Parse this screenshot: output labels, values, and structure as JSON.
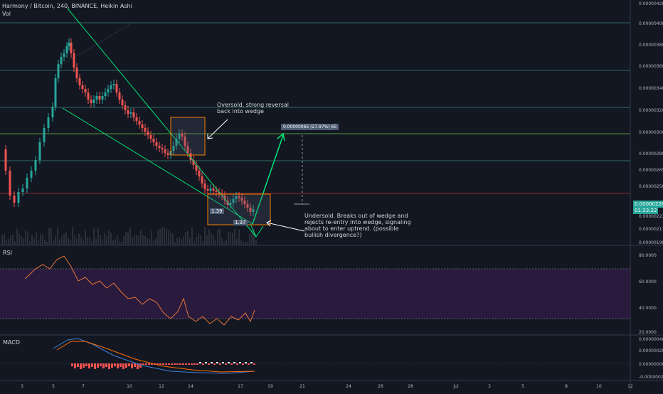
{
  "header": {
    "title": "Harmony / Bitcoin, 240, BINANCE, Heikin Ashi",
    "vol_label": "Vol"
  },
  "price_axis": {
    "labels": [
      "0.00000420",
      "0.00000400",
      "0.00000380",
      "0.00000360",
      "0.00000340",
      "0.00000320",
      "0.00000300",
      "0.00000280",
      "0.00000265",
      "0.00000250",
      "0.00000235",
      "0.00000223",
      "0.00000211",
      "0.00000199"
    ],
    "current_price": "0.00000226",
    "countdown": "01:33:22"
  },
  "rsi_axis": {
    "title": "RSI",
    "labels": [
      "80.0000",
      "60.0000",
      "40.0000",
      "20.0000"
    ]
  },
  "macd_axis": {
    "title": "MACD",
    "labels": [
      "0.00000040",
      "0.00000020",
      "0.00000000",
      "-0.00000020"
    ]
  },
  "time_axis": {
    "labels": [
      "3",
      "5",
      "7",
      "10",
      "12",
      "14",
      "17",
      "19",
      "21",
      "24",
      "26",
      "28",
      "Jul",
      "3",
      "5",
      "8",
      "10",
      "12"
    ]
  },
  "annotations": {
    "oversold_note": [
      "Oversold, strong reversal",
      "back into wedge"
    ],
    "undersold_note": [
      "Undersold. Breaks out of wedge and",
      "rejects re-entry into wedge, signaling",
      "about to enter uptrend. (possible",
      "bullish divergence?)"
    ],
    "measure_label": "0.00000065 (27.97%) 65",
    "box_label_1": "1.39",
    "box_label_2": "1.37"
  },
  "colors": {
    "bull": "#26a69a",
    "bear": "#ef5350",
    "trend": "#00e676",
    "box": "#f57c00",
    "rsi_line": "#e6743a",
    "rsi_band": "#2a1a3d",
    "macd_line": "#3f7fd6",
    "signal_line": "#ff6d00",
    "hline_teal": "#2e6b65",
    "hline_green": "#5a9a3a",
    "hline_red": "#8a2b2b"
  }
}
